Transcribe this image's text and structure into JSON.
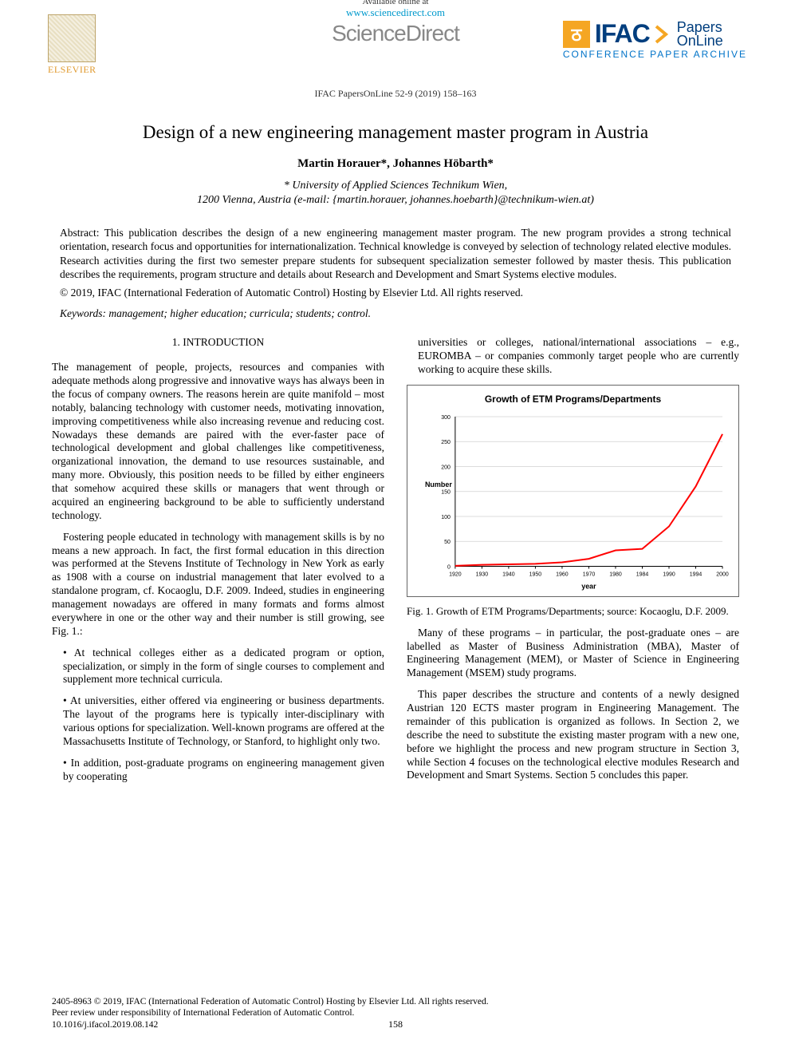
{
  "header": {
    "available_at": "Available online at",
    "url": "www.sciencedirect.com",
    "science_direct": "ScienceDirect",
    "elsevier": "ELSEVIER",
    "ifac_main": "IFAC",
    "ifac_papers_l1": "Papers",
    "ifac_papers_l2": "OnLine",
    "ifac_sub": "CONFERENCE PAPER ARCHIVE",
    "journal_line": "IFAC PapersOnLine 52-9 (2019) 158–163"
  },
  "title": "Design of a new engineering management master program in Austria",
  "authors": "Martin Horauer*, Johannes Höbarth*",
  "affiliations": [
    "* University of Applied Sciences Technikum Wien,",
    "1200 Vienna, Austria (e-mail: {martin.horauer, johannes.hoebarth}@technikum-wien.at)"
  ],
  "abstract": "Abstract: This publication describes the design of a new engineering management master program. The new program provides a strong technical orientation, research focus and opportunities for internationalization. Technical knowledge is conveyed by selection of technology related elective modules. Research activities during the first two semester prepare students for subsequent specialization semester followed by master thesis. This publication describes the requirements, program structure and details about Research and Development and Smart Systems elective modules.",
  "copyright_line": "© 2019, IFAC (International Federation of Automatic Control) Hosting by Elsevier Ltd. All rights reserved.",
  "keywords": "Keywords: management; higher education; curricula; students; control.",
  "left": {
    "h": "1. INTRODUCTION",
    "p1": "The management of people, projects, resources and companies with adequate methods along progressive and innovative ways has always been in the focus of company owners. The reasons herein are quite manifold – most notably, balancing technology with customer needs, motivating innovation, improving competitiveness while also increasing revenue and reducing cost. Nowadays these demands are paired with the ever-faster pace of technological development and global challenges like competitiveness, organizational innovation, the demand to use resources sustainable, and many more. Obviously, this position needs to be filled by either engineers that somehow acquired these skills or managers that went through or acquired an engineering background to be able to sufficiently understand technology.",
    "p2": "Fostering people educated in technology with management skills is by no means a new approach. In fact, the first formal education in this direction was performed at the Stevens Institute of Technology in New York as early as 1908 with a course on industrial management that later evolved to a standalone program, cf. Kocaoglu, D.F. 2009. Indeed, studies in engineering management nowadays are offered in many formats and forms almost everywhere in one or the other way and their number is still growing, see Fig. 1.:",
    "bullets": "• At technical colleges either as a dedicated program or option, specialization, or simply in the form of single courses to complement and supplement more technical curricula.",
    "p3": "• At universities, either offered via engineering or business departments. The layout of the programs here is typically inter-disciplinary with various options for specialization. Well-known programs are offered at the Massachusetts Institute of Technology, or Stanford, to highlight only two.",
    "p4": "• In addition, post-graduate programs on engineering management given by cooperating"
  },
  "right": {
    "p1": "universities or colleges, national/international associations – e.g., EUROMBA – or companies commonly target people who are currently working to acquire these skills.",
    "chart": {
      "type": "line",
      "title": "Growth of ETM Programs/Departments",
      "x_label": "year",
      "y_label": "Number",
      "x_ticks": [
        "1920",
        "1930",
        "1940",
        "1950",
        "1960",
        "1970",
        "1980",
        "1984",
        "1990",
        "1994",
        "2000"
      ],
      "y_ticks": [
        0,
        50,
        100,
        150,
        200,
        250,
        300
      ],
      "ylim": [
        0,
        300
      ],
      "values": [
        1,
        3,
        4,
        5,
        8,
        15,
        32,
        35,
        80,
        160,
        265
      ],
      "line_color": "#ff0000",
      "line_width": 2,
      "grid_color": "#d0d0d0",
      "axis_color": "#000000",
      "background_color": "#ffffff",
      "title_fontsize": 12,
      "tick_fontsize": 7,
      "label_fontsize": 9
    },
    "fig_caption": "Fig. 1. Growth of ETM Programs/Departments; source: Kocaoglu, D.F. 2009.",
    "p2": "Many of these programs – in particular, the post-graduate ones – are labelled as Master of Business Administration (MBA), Master of Engineering Management (MEM), or Master of Science in Engineering Management (MSEM) study programs.",
    "p3": "This paper describes the structure and contents of a newly designed Austrian 120 ECTS master program in Engineering Management. The remainder of this publication is organized as follows. In Section 2, we describe the need to substitute the existing master program with a new one, before we highlight the process and new program structure in Section 3, while Section 4 focuses on the technological elective modules Research and Development and Smart Systems. Section 5 concludes this paper."
  },
  "footer": {
    "line1": "2405-8963 © 2019, IFAC (International Federation of Automatic Control) Hosting by Elsevier Ltd. All rights reserved.",
    "line2": "Peer review under responsibility of International Federation of Automatic Control.",
    "line3": "10.1016/j.ifacol.2019.08.142",
    "page": "158"
  }
}
